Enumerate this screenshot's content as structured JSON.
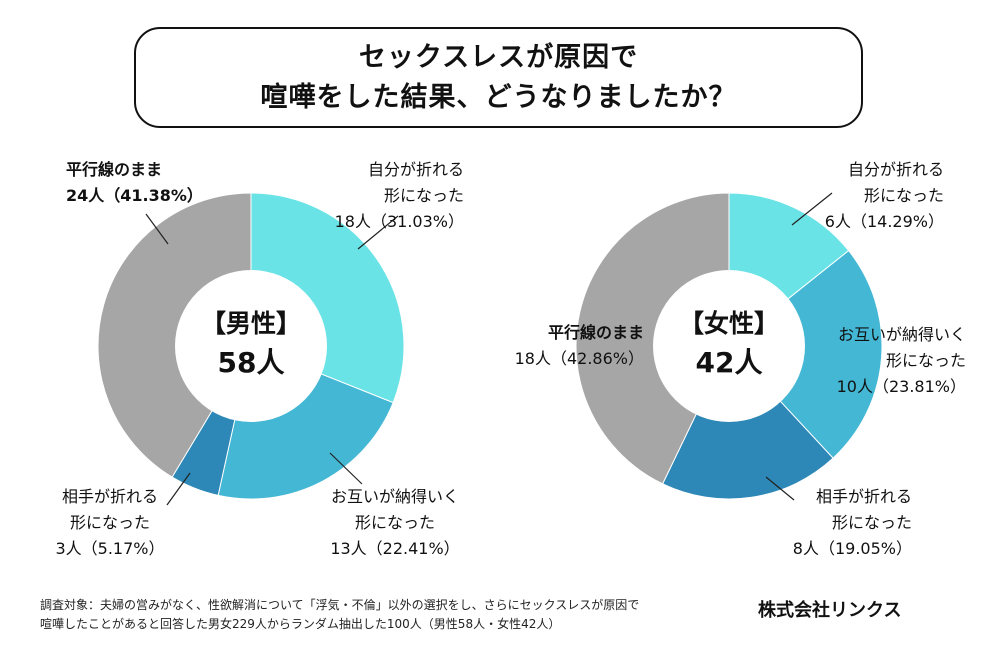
{
  "title": {
    "line1": "セックスレスが原因で",
    "line2": "喧嘩をした結果、どうなりましたか？"
  },
  "chart_data": [
    {
      "type": "pie",
      "subtype": "donut",
      "center_label": "【男性】",
      "center_total": "58人",
      "slices": [
        {
          "name": "自分が折れる形になった",
          "count": 18,
          "percent": 31.03,
          "label_line1": "自分が折れる",
          "label_line2": "形になった",
          "label_value": "18人（31.03%）",
          "color": "#6ae3e6"
        },
        {
          "name": "お互いが納得いく形になった",
          "count": 13,
          "percent": 22.41,
          "label_line1": "お互いが納得いく",
          "label_line2": "形になった",
          "label_value": "13人（22.41%）",
          "color": "#43b7d4"
        },
        {
          "name": "相手が折れる形になった",
          "count": 3,
          "percent": 5.17,
          "label_line1": "相手が折れる",
          "label_line2": "形になった",
          "label_value": "3人（5.17%）",
          "color": "#2d88b7"
        },
        {
          "name": "平行線のまま",
          "count": 24,
          "percent": 41.38,
          "label_line1": "平行線のまま",
          "label_value": "24人（41.38%）",
          "color": "#a6a6a6"
        }
      ]
    },
    {
      "type": "pie",
      "subtype": "donut",
      "center_label": "【女性】",
      "center_total": "42人",
      "slices": [
        {
          "name": "自分が折れる形になった",
          "count": 6,
          "percent": 14.29,
          "label_line1": "自分が折れる",
          "label_line2": "形になった",
          "label_value": "6人（14.29%）",
          "color": "#6ae3e6"
        },
        {
          "name": "お互いが納得いく形になった",
          "count": 10,
          "percent": 23.81,
          "label_line1": "お互いが納得いく",
          "label_line2": "形になった",
          "label_value": "10人（23.81%）",
          "color": "#43b7d4"
        },
        {
          "name": "相手が折れる形になった",
          "count": 8,
          "percent": 19.05,
          "label_line1": "相手が折れる",
          "label_line2": "形になった",
          "label_value": "8人（19.05%）",
          "color": "#2d88b7"
        },
        {
          "name": "平行線のまま",
          "count": 18,
          "percent": 42.86,
          "label_line1": "平行線のまま",
          "label_value": "18人（42.86%）",
          "color": "#a6a6a6"
        }
      ]
    }
  ],
  "footnote": {
    "line1": "調査対象：夫婦の営みがなく、性欲解消について「浮気・不倫」以外の選択をし、さらにセックスレスが原因で",
    "line2": "喧嘩したことがあると回答した男女229人からランダム抽出した100人（男性58人・女性42人）"
  },
  "company": "株式会社リンクス"
}
